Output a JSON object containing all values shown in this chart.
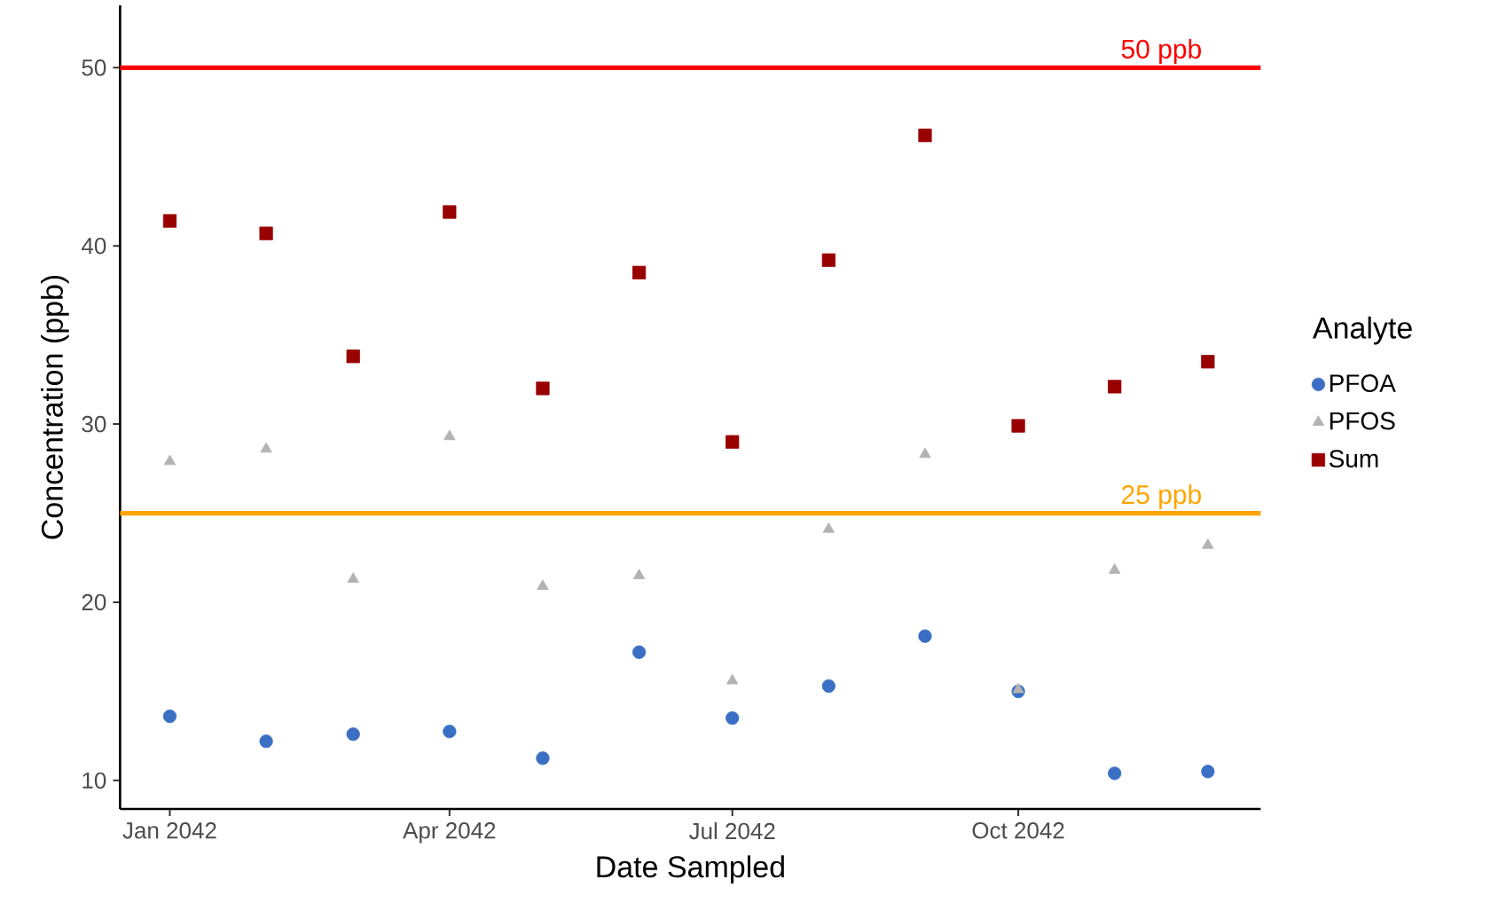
{
  "chart_data": {
    "type": "scatter",
    "xlabel": "Date Sampled",
    "ylabel": "Concentration (ppb)",
    "legend_title": "Analyte",
    "legend": "right",
    "grid": false,
    "x": [
      "2042-01-01",
      "2042-02-01",
      "2042-03-01",
      "2042-04-01",
      "2042-05-01",
      "2042-06-01",
      "2042-07-01",
      "2042-08-01",
      "2042-09-01",
      "2042-10-01",
      "2042-11-01",
      "2042-12-01"
    ],
    "xlim": [
      "2041-12-16",
      "2042-12-18"
    ],
    "xticks": [
      {
        "value": "2042-01-01",
        "label": "Jan 2042"
      },
      {
        "value": "2042-04-01",
        "label": "Apr 2042"
      },
      {
        "value": "2042-07-01",
        "label": "Jul 2042"
      },
      {
        "value": "2042-10-01",
        "label": "Oct 2042"
      }
    ],
    "ylim": [
      8.4,
      53.5
    ],
    "yticks": [
      10,
      20,
      30,
      40,
      50
    ],
    "series": [
      {
        "name": "PFOA",
        "color": "#3a6fc4",
        "marker": "circle",
        "values": [
          13.6,
          12.2,
          12.6,
          12.75,
          11.25,
          17.2,
          13.5,
          15.3,
          18.1,
          15.0,
          10.4,
          10.5
        ]
      },
      {
        "name": "PFOS",
        "color": "#b3b3b3",
        "marker": "triangle",
        "values": [
          27.9,
          28.6,
          21.3,
          29.3,
          20.9,
          21.5,
          15.6,
          24.1,
          28.3,
          15.1,
          21.8,
          23.2
        ]
      },
      {
        "name": "Sum",
        "color": "#990000",
        "marker": "square",
        "values": [
          41.4,
          40.7,
          33.8,
          41.9,
          32.0,
          38.5,
          29.0,
          39.2,
          46.2,
          29.9,
          32.1,
          33.5
        ]
      }
    ],
    "ref_lines": [
      {
        "axis": "y",
        "value": 50,
        "label": "50 ppb",
        "color": "#ff0000"
      },
      {
        "axis": "y",
        "value": 25,
        "label": "25 ppb",
        "color": "#ffa500"
      }
    ]
  }
}
